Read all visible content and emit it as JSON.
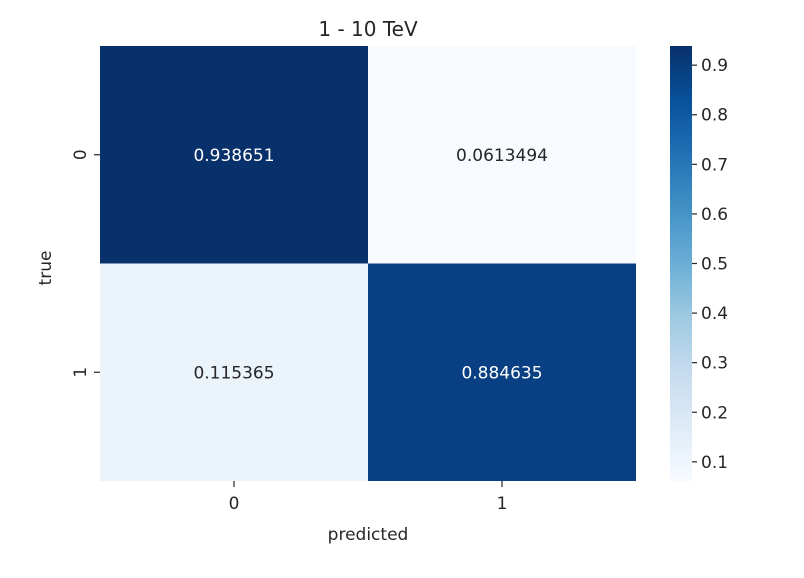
{
  "chart_data": {
    "type": "heatmap",
    "title": "1 - 10 TeV",
    "xlabel": "predicted",
    "ylabel": "true",
    "x_categories": [
      "0",
      "1"
    ],
    "y_categories": [
      "0",
      "1"
    ],
    "values": [
      [
        0.938651,
        0.0613494
      ],
      [
        0.115365,
        0.884635
      ]
    ],
    "value_labels": [
      [
        "0.938651",
        "0.0613494"
      ],
      [
        "0.115365",
        "0.884635"
      ]
    ],
    "colormap": "Blues",
    "colorbar": {
      "min": 0.0613494,
      "max": 0.938651,
      "ticks": [
        0.1,
        0.2,
        0.3,
        0.4,
        0.5,
        0.6,
        0.7,
        0.8,
        0.9
      ],
      "tick_labels": [
        "0.1",
        "0.2",
        "0.3",
        "0.4",
        "0.5",
        "0.6",
        "0.7",
        "0.8",
        "0.9"
      ]
    },
    "colors": {
      "low": "#f7fbff",
      "high": "#08306b",
      "text_on_dark": "#ffffff",
      "text_on_light": "#262626"
    }
  }
}
